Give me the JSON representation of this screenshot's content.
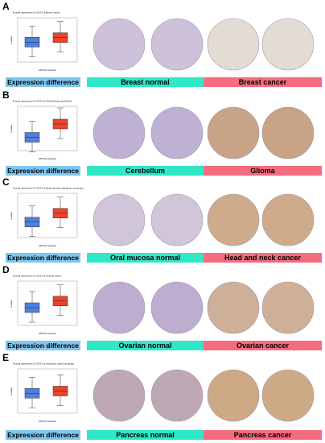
{
  "panels": [
    {
      "letter": "A",
      "plot_title": "Protein expression of CEP55 in Breast cancer",
      "y_label": "Z-value",
      "x_label": "CPTAC samples",
      "key": "Expression difference",
      "normal": "Breast normal",
      "cancer": "Breast cancer"
    },
    {
      "letter": "B",
      "plot_title": "Protein expression of CEP55 in Glioblastoma multiforme",
      "y_label": "Z-value",
      "x_label": "CPTAC samples",
      "key": "Expression difference",
      "normal": "Cerebellum",
      "cancer": "Glioma"
    },
    {
      "letter": "C",
      "plot_title": "Protein expression of CEP55 in Head and neck squamous carcinoma",
      "y_label": "Z-value",
      "x_label": "CPTAC samples",
      "key": "Expression difference",
      "normal": "Oral mucosa normal",
      "cancer": "Head and neck cancer"
    },
    {
      "letter": "D",
      "plot_title": "Protein expression of CEP55 in Ovarian cancer",
      "y_label": "Z-value",
      "x_label": "CPTAC samples",
      "key": "Expression difference",
      "normal": "Ovarian normal",
      "cancer": "Ovarian cancer"
    },
    {
      "letter": "E",
      "plot_title": "Protein expression of CEP55 in Pancreatic adenocarcinoma",
      "y_label": "Z-value",
      "x_label": "CPTAC samples",
      "key": "Expression difference",
      "normal": "Pancreas normal",
      "cancer": "Pancreas cancer"
    }
  ]
}
